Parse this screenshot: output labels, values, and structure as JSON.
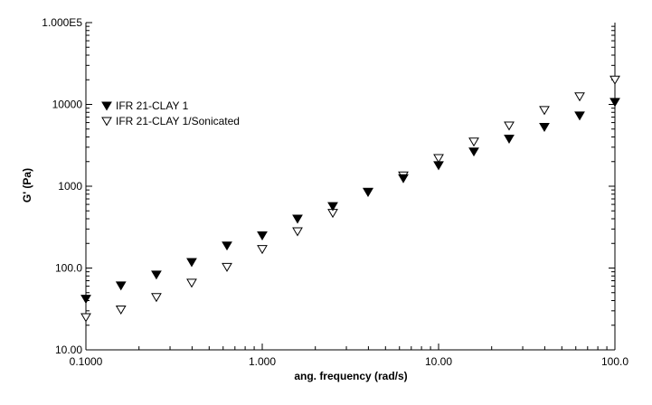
{
  "chart_data": {
    "type": "scatter",
    "title": "",
    "xlabel": "ang. frequency (rad/s)",
    "ylabel": "G' (Pa)",
    "x_scale": "log",
    "y_scale": "log",
    "xlim": [
      0.1,
      100
    ],
    "ylim": [
      10,
      100000
    ],
    "grid": false,
    "legend_position": "top-left",
    "x_tick_labels": [
      {
        "value": 0.1,
        "label": "0.1000"
      },
      {
        "value": 1,
        "label": "1.000"
      },
      {
        "value": 10,
        "label": "10.00"
      },
      {
        "value": 100,
        "label": "100.0"
      }
    ],
    "y_tick_labels": [
      {
        "value": 10,
        "label": "10.00"
      },
      {
        "value": 100,
        "label": "100.0"
      },
      {
        "value": 1000,
        "label": "1000"
      },
      {
        "value": 10000,
        "label": "10000"
      },
      {
        "value": 100000,
        "label": "1.000E5"
      }
    ],
    "series": [
      {
        "name": "IFR 21-CLAY 1",
        "marker": "filled-down-triangle",
        "color": "#000000",
        "x": [
          0.1,
          0.158,
          0.251,
          0.398,
          0.631,
          1.0,
          1.585,
          2.512,
          3.981,
          6.31,
          10.0,
          15.85,
          25.12,
          39.81,
          63.1,
          100.0
        ],
        "y": [
          42,
          61,
          83,
          118,
          188,
          250,
          400,
          570,
          850,
          1250,
          1800,
          2650,
          3800,
          5300,
          7300,
          10700
        ]
      },
      {
        "name": "IFR 21-CLAY 1/Sonicated",
        "marker": "open-down-triangle",
        "color": "#000000",
        "x": [
          0.1,
          0.158,
          0.251,
          0.398,
          0.631,
          1.0,
          1.585,
          2.512,
          3.981,
          6.31,
          10.0,
          15.85,
          25.12,
          39.81,
          63.1,
          100.0
        ],
        "y": [
          25,
          31,
          44,
          66,
          103,
          170,
          280,
          470,
          850,
          1350,
          2200,
          3500,
          5500,
          8500,
          12500,
          20000
        ]
      }
    ]
  }
}
